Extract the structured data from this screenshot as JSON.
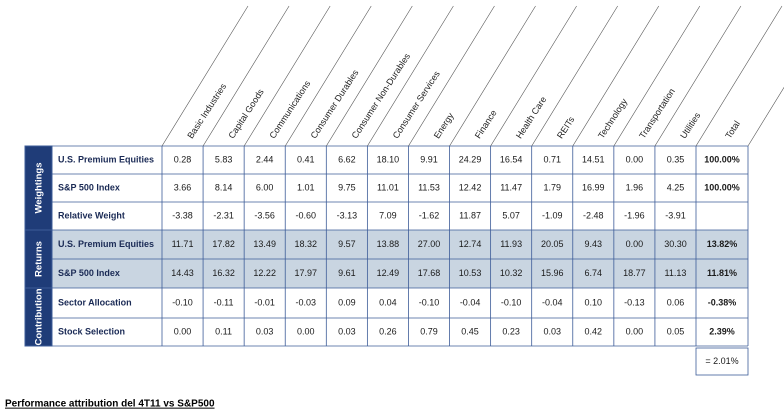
{
  "table": {
    "columns": [
      "Basic Industries",
      "Capital Goods",
      "Communications",
      "Consumer Durables",
      "Consumer Non-Durables",
      "Consumer Services",
      "Energy",
      "Finance",
      "Health Care",
      "REITs",
      "Technology",
      "Transportation",
      "Utilities"
    ],
    "total_header": "Total",
    "groups": [
      {
        "label": "Weightings",
        "rows": [
          {
            "label": "U.S. Premium Equities",
            "values": [
              "0.28",
              "5.83",
              "2.44",
              "0.41",
              "6.62",
              "18.10",
              "9.91",
              "24.29",
              "16.54",
              "0.71",
              "14.51",
              "0.00",
              "0.35"
            ],
            "total": "100.00%"
          },
          {
            "label": "S&P 500 Index",
            "values": [
              "3.66",
              "8.14",
              "6.00",
              "1.01",
              "9.75",
              "11.01",
              "11.53",
              "12.42",
              "11.47",
              "1.79",
              "16.99",
              "1.96",
              "4.25"
            ],
            "total": "100.00%"
          },
          {
            "label": "Relative Weight",
            "values": [
              "-3.38",
              "-2.31",
              "-3.56",
              "-0.60",
              "-3.13",
              "7.09",
              "-1.62",
              "11.87",
              "5.07",
              "-1.09",
              "-2.48",
              "-1.96",
              "-3.91"
            ]
          }
        ]
      },
      {
        "label": "Returns",
        "rows": [
          {
            "label": "U.S. Premium Equities",
            "values": [
              "11.71",
              "17.82",
              "13.49",
              "18.32",
              "9.57",
              "13.88",
              "27.00",
              "12.74",
              "11.93",
              "20.05",
              "9.43",
              "0.00",
              "30.30"
            ],
            "total": "13.82%"
          },
          {
            "label": "S&P 500 Index",
            "values": [
              "14.43",
              "16.32",
              "12.22",
              "17.97",
              "9.61",
              "12.49",
              "17.68",
              "10.53",
              "10.32",
              "15.96",
              "6.74",
              "18.77",
              "11.13"
            ],
            "total": "11.81%"
          }
        ]
      },
      {
        "label": "Contribution",
        "rows": [
          {
            "label": "Sector Allocation",
            "values": [
              "-0.10",
              "-0.11",
              "-0.01",
              "-0.03",
              "0.09",
              "0.04",
              "-0.10",
              "-0.04",
              "-0.10",
              "-0.04",
              "0.10",
              "-0.13",
              "0.06"
            ],
            "total": "-0.38%"
          },
          {
            "label": "Stock Selection",
            "values": [
              "0.00",
              "0.11",
              "0.03",
              "0.00",
              "0.03",
              "0.26",
              "0.79",
              "0.45",
              "0.23",
              "0.03",
              "0.42",
              "0.00",
              "0.05"
            ],
            "total": "2.39%"
          }
        ]
      }
    ],
    "grand_total": "= 2.01%"
  },
  "caption": "Performance attribution del 4T11 vs S&P500"
}
